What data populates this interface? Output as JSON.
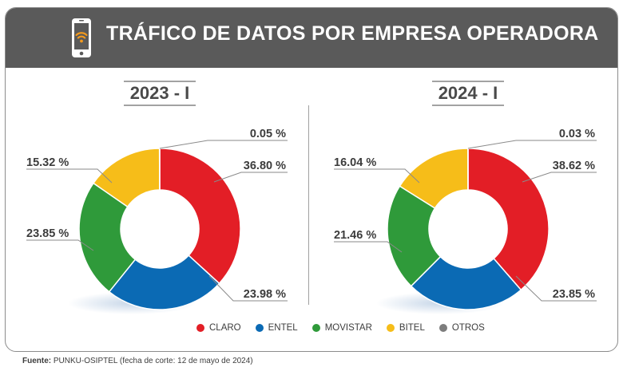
{
  "title": "TRÁFICO DE DATOS POR EMPRESA OPERADORA",
  "source": {
    "label": "Fuente:",
    "text": " PUNKU-OSIPTEL (fecha de corte: 12 de mayo de 2024)"
  },
  "legend": [
    {
      "name": "CLARO",
      "color": "#e31e26"
    },
    {
      "name": "ENTEL",
      "color": "#0b6ab4"
    },
    {
      "name": "MOVISTAR",
      "color": "#2f9a3a"
    },
    {
      "name": "BITEL",
      "color": "#f6bd19"
    },
    {
      "name": "OTROS",
      "color": "#7d7d7d"
    }
  ],
  "chart_data": [
    {
      "type": "pie",
      "title": "2023 - I",
      "categories": [
        "CLARO",
        "ENTEL",
        "MOVISTAR",
        "BITEL",
        "OTROS"
      ],
      "values": [
        36.8,
        23.98,
        23.85,
        15.32,
        0.05
      ],
      "labels": [
        "36.80 %",
        "23.98 %",
        "23.85 %",
        "15.32 %",
        "0.05 %"
      ]
    },
    {
      "type": "pie",
      "title": "2024 - I",
      "categories": [
        "CLARO",
        "ENTEL",
        "MOVISTAR",
        "BITEL",
        "OTROS"
      ],
      "values": [
        38.62,
        23.85,
        21.46,
        16.04,
        0.03
      ],
      "labels": [
        "38.62 %",
        "23.85 %",
        "21.46 %",
        "16.04 %",
        "0.03 %"
      ]
    }
  ]
}
